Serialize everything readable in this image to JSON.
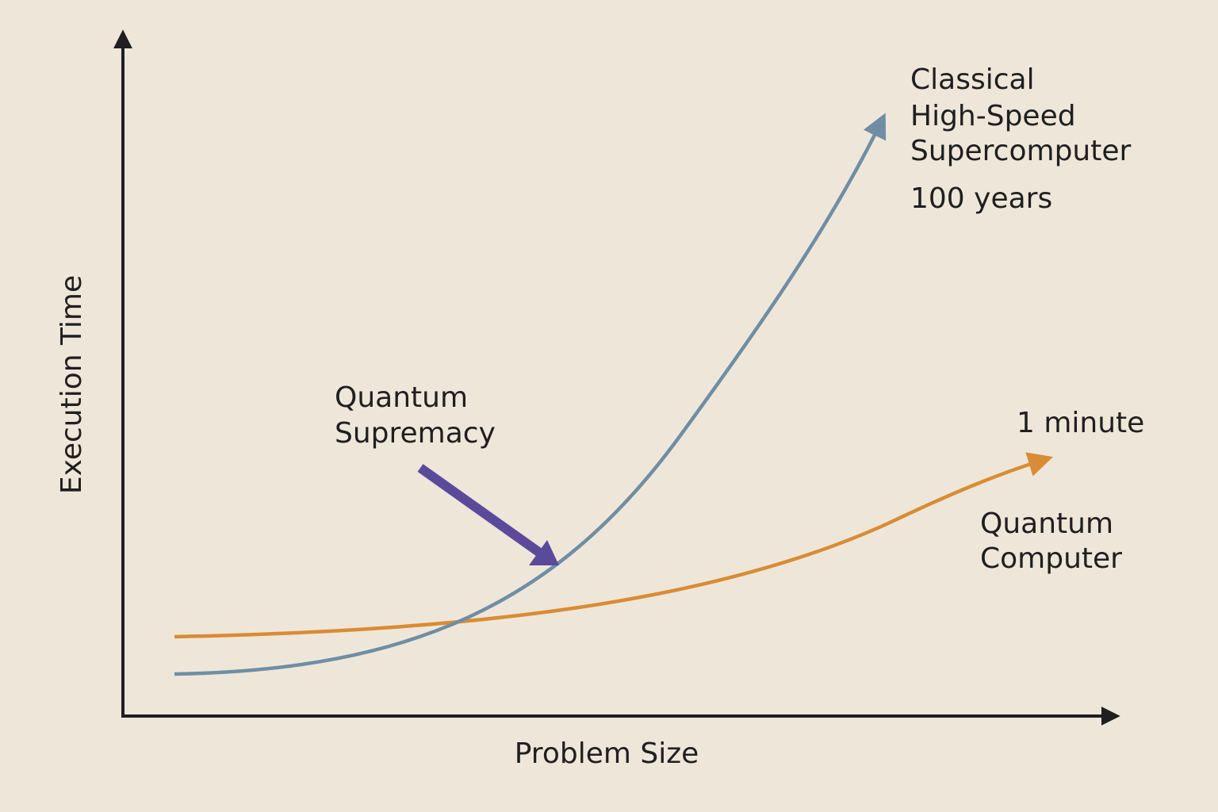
{
  "axes": {
    "x_label": "Problem Size",
    "y_label": "Execution Time"
  },
  "classical": {
    "label": [
      "Classical",
      "High-Speed",
      "Supercomputer"
    ],
    "time": "100 years"
  },
  "quantum": {
    "label": [
      "Quantum",
      "Computer"
    ],
    "time": "1 minute"
  },
  "annotation": {
    "label": [
      "Quantum",
      "Supremacy"
    ]
  }
}
